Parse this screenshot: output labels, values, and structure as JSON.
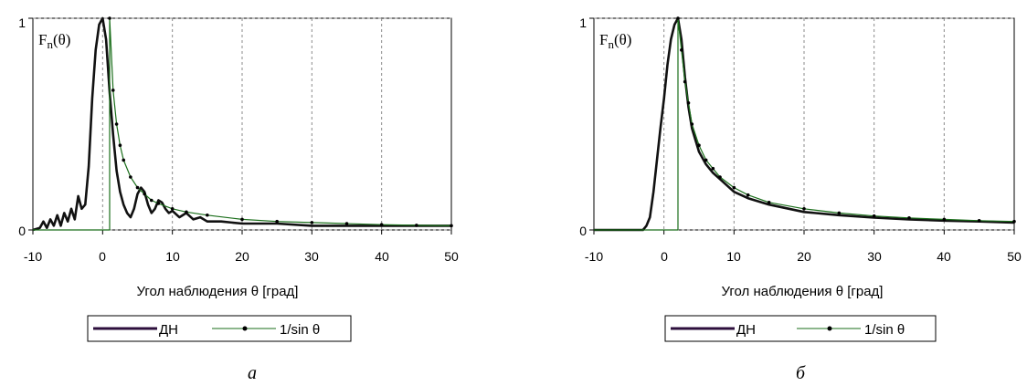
{
  "chart_data": [
    {
      "type": "line",
      "panel_label": "а",
      "title": "",
      "xlabel": "Угол наблюдения θ [град]",
      "ylabel_main": "F",
      "ylabel_sub": "n",
      "ylabel_arg": "(θ)",
      "xlim": [
        -10,
        50
      ],
      "ylim": [
        0,
        1
      ],
      "x_ticks": [
        "-10",
        "0",
        "10",
        "20",
        "30",
        "40",
        "50"
      ],
      "y_ticks": [
        "0",
        "1"
      ],
      "grid": true,
      "legend_position": "bottom",
      "series": [
        {
          "name": "ДН",
          "color": "#2d0f3c",
          "x": [
            -10,
            -9,
            -8.5,
            -8,
            -7.5,
            -7,
            -6.5,
            -6,
            -5.5,
            -5,
            -4.5,
            -4,
            -3.5,
            -3,
            -2.5,
            -2,
            -1.5,
            -1,
            -0.5,
            0,
            0.5,
            1,
            1.5,
            2,
            2.5,
            3,
            3.5,
            4,
            4.5,
            5,
            5.5,
            6,
            6.5,
            7,
            7.5,
            8,
            8.5,
            9,
            9.5,
            10,
            11,
            12,
            13,
            14,
            15,
            17,
            20,
            25,
            30,
            35,
            40,
            45,
            50
          ],
          "y": [
            0,
            0.01,
            0.04,
            0.01,
            0.05,
            0.02,
            0.07,
            0.02,
            0.08,
            0.04,
            0.1,
            0.05,
            0.16,
            0.1,
            0.12,
            0.3,
            0.62,
            0.85,
            0.97,
            1.0,
            0.9,
            0.65,
            0.45,
            0.28,
            0.18,
            0.12,
            0.08,
            0.06,
            0.1,
            0.17,
            0.2,
            0.18,
            0.12,
            0.08,
            0.1,
            0.14,
            0.13,
            0.1,
            0.08,
            0.09,
            0.06,
            0.08,
            0.05,
            0.06,
            0.04,
            0.04,
            0.03,
            0.03,
            0.02,
            0.02,
            0.02,
            0.02,
            0.02
          ]
        },
        {
          "name": "1/sin θ",
          "color": "#1a6e1a",
          "x": [
            -10,
            1,
            1,
            1.5,
            2,
            2.5,
            3,
            4,
            5,
            6,
            7,
            8,
            10,
            12,
            15,
            20,
            25,
            30,
            35,
            40,
            45,
            50
          ],
          "y": [
            0,
            0,
            1.0,
            0.66,
            0.5,
            0.4,
            0.33,
            0.25,
            0.2,
            0.17,
            0.14,
            0.125,
            0.1,
            0.085,
            0.07,
            0.05,
            0.04,
            0.035,
            0.03,
            0.025,
            0.022,
            0.02
          ]
        }
      ]
    },
    {
      "type": "line",
      "panel_label": "б",
      "title": "",
      "xlabel": "Угол наблюдения θ [град]",
      "ylabel_main": "F",
      "ylabel_sub": "n",
      "ylabel_arg": "(θ)",
      "xlim": [
        -10,
        50
      ],
      "ylim": [
        0,
        1
      ],
      "x_ticks": [
        "-10",
        "0",
        "10",
        "20",
        "30",
        "40",
        "50"
      ],
      "y_ticks": [
        "0",
        "1"
      ],
      "grid": true,
      "legend_position": "bottom",
      "series": [
        {
          "name": "ДН",
          "color": "#2d0f3c",
          "x": [
            -10,
            -3,
            -2.5,
            -2,
            -1.5,
            -1,
            -0.5,
            0,
            0.5,
            1,
            1.5,
            2,
            2.5,
            3,
            3.5,
            4,
            5,
            6,
            7,
            8,
            10,
            12,
            15,
            20,
            25,
            30,
            35,
            40,
            45,
            50
          ],
          "y": [
            0,
            0,
            0.02,
            0.06,
            0.18,
            0.33,
            0.48,
            0.62,
            0.78,
            0.9,
            0.97,
            1.0,
            0.9,
            0.72,
            0.58,
            0.48,
            0.37,
            0.31,
            0.27,
            0.24,
            0.18,
            0.15,
            0.12,
            0.085,
            0.07,
            0.058,
            0.05,
            0.044,
            0.04,
            0.035
          ]
        },
        {
          "name": "1/sin θ",
          "color": "#1a6e1a",
          "x": [
            -10,
            2,
            2,
            2.5,
            3,
            3.5,
            4,
            5,
            6,
            7,
            8,
            10,
            12,
            15,
            20,
            25,
            30,
            35,
            40,
            45,
            50
          ],
          "y": [
            0,
            0,
            1.0,
            0.85,
            0.7,
            0.6,
            0.5,
            0.4,
            0.33,
            0.29,
            0.25,
            0.2,
            0.165,
            0.13,
            0.1,
            0.08,
            0.066,
            0.057,
            0.05,
            0.044,
            0.04
          ]
        }
      ]
    }
  ]
}
